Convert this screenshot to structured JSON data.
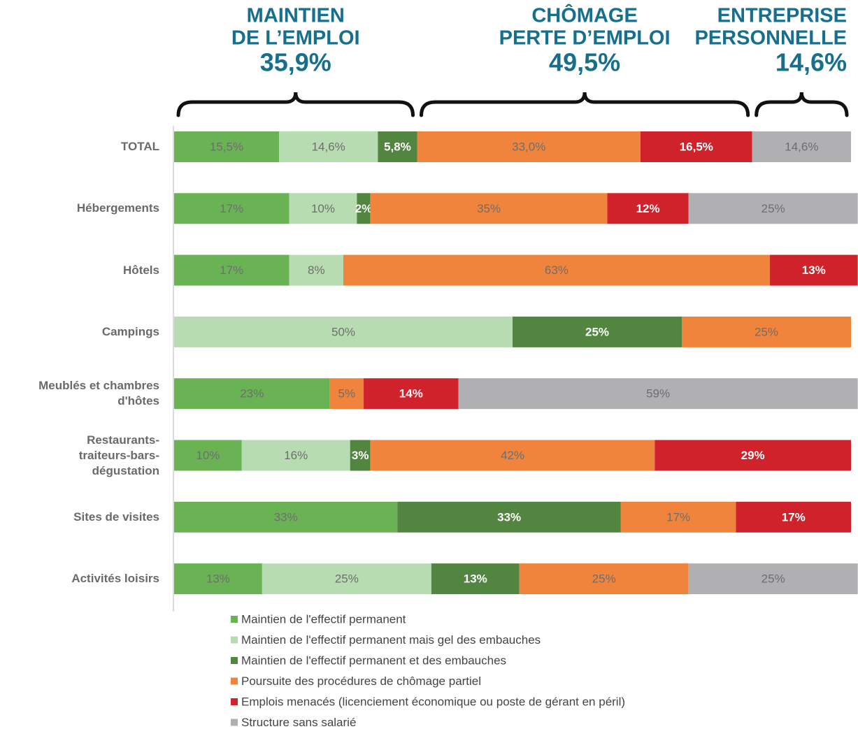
{
  "annotations": [
    {
      "lines": [
        "MAINTIEN",
        "DE L’EMPLOI"
      ],
      "value": 35.9,
      "value_label": "35,9%"
    },
    {
      "lines": [
        "CHÔMAGE",
        "PERTE D’EMPLOI"
      ],
      "value": 49.5,
      "value_label": "49,5%"
    },
    {
      "lines": [
        "ENTREPRISE",
        "PERSONNELLE"
      ],
      "value": 14.6,
      "value_label": "14,6%"
    }
  ],
  "chart_data": {
    "type": "bar",
    "orientation": "horizontal",
    "stacked": true,
    "categories": [
      "TOTAL",
      "Hébergements",
      "Hôtels",
      "Campings",
      "Meublés et chambres d'hôtes",
      "Restaurants-traiteurs-bars-dégustation",
      "Sites de visites",
      "Activités loisirs"
    ],
    "xlim": [
      0,
      100
    ],
    "legend": "bottom",
    "series": [
      {
        "name": "Maintien de l'effectif permanent",
        "color": "#6ab355",
        "values": [
          15.5,
          17,
          17,
          null,
          23,
          10,
          33,
          13
        ],
        "value_labels": [
          "15,5%",
          "17%",
          "17%",
          null,
          "23%",
          "10%",
          "33%",
          "13%"
        ]
      },
      {
        "name": "Maintien de l'effectif permanent mais gel des embauches",
        "color": "#b8dcb1",
        "values": [
          14.6,
          10,
          8,
          50,
          null,
          16,
          null,
          25
        ],
        "value_labels": [
          "14,6%",
          "10%",
          "8%",
          "50%",
          null,
          "16%",
          null,
          "25%"
        ]
      },
      {
        "name": "Maintien de l'effectif permanent et des embauches",
        "color": "#528540",
        "values": [
          5.8,
          2,
          null,
          25,
          null,
          3,
          33,
          13
        ],
        "value_labels": [
          "5,8%",
          "2%",
          null,
          "25%",
          null,
          "3%",
          "33%",
          "13%"
        ]
      },
      {
        "name": "Poursuite des procédures de chômage partiel",
        "color": "#f0843c",
        "values": [
          33.0,
          35,
          63,
          25,
          5,
          42,
          17,
          25
        ],
        "value_labels": [
          "33,0%",
          "35%",
          "63%",
          "25%",
          "5%",
          "42%",
          "17%",
          "25%"
        ]
      },
      {
        "name": "Emplois menacés (licenciement économique ou poste de gérant en péril)",
        "color": "#d0222b",
        "values": [
          16.5,
          12,
          13,
          null,
          14,
          29,
          17,
          null
        ],
        "value_labels": [
          "16,5%",
          "12%",
          "13%",
          null,
          "14%",
          "29%",
          "17%",
          null
        ]
      },
      {
        "name": "Structure sans salarié",
        "color": "#b0b0b3",
        "values": [
          14.6,
          25,
          null,
          null,
          59,
          null,
          null,
          25
        ],
        "value_labels": [
          "14,6%",
          "25%",
          null,
          null,
          "59%",
          null,
          null,
          "25%"
        ]
      }
    ]
  }
}
